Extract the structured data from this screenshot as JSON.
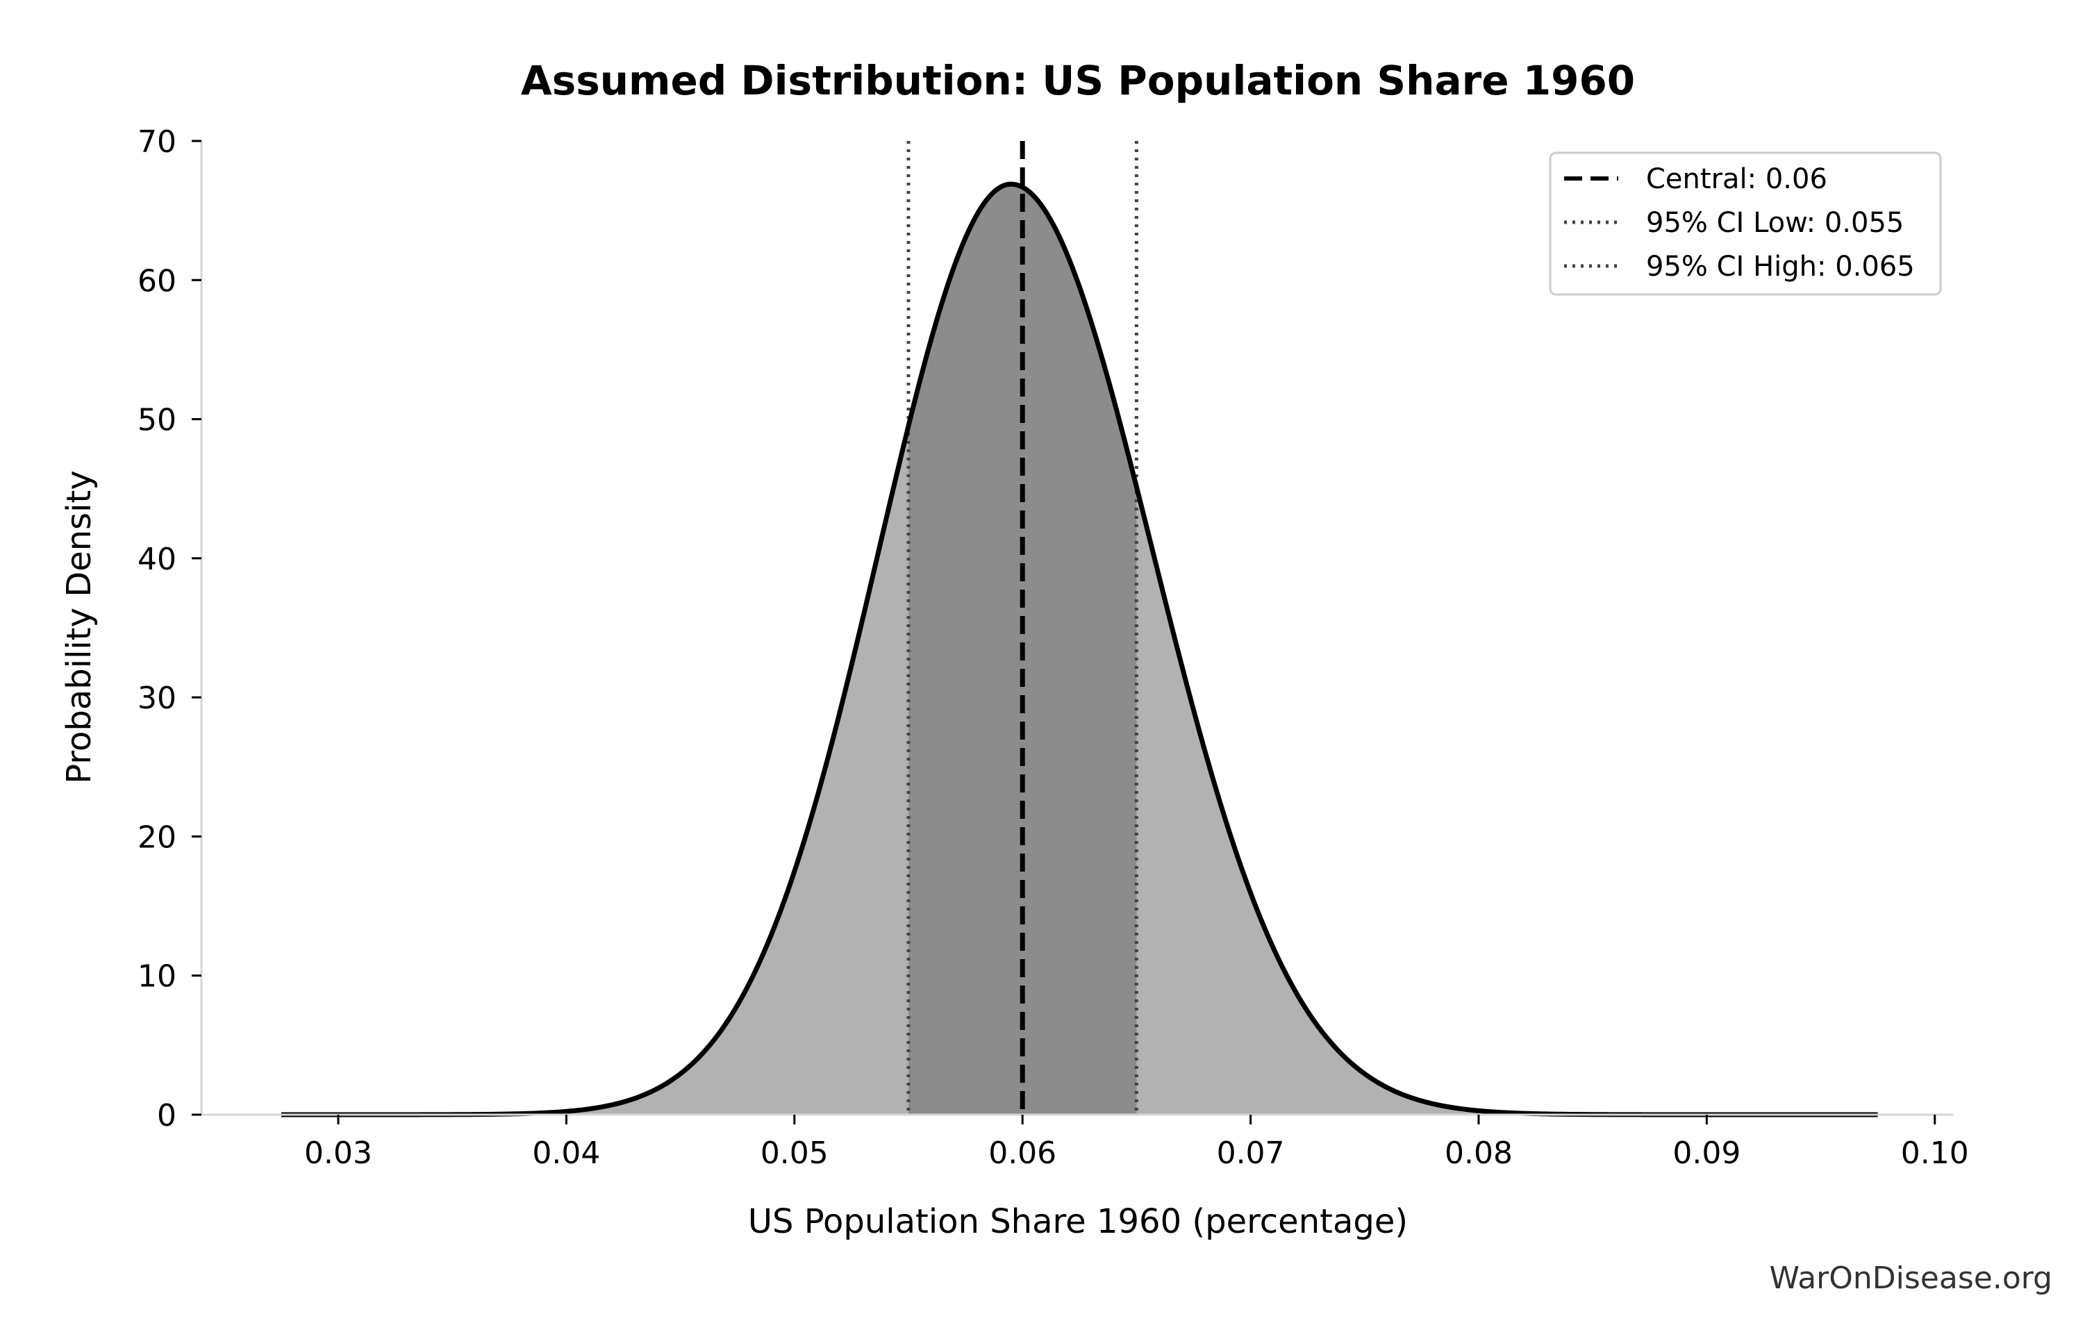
{
  "chart_data": {
    "type": "area",
    "title": "Assumed Distribution: US Population Share 1960",
    "xlabel": "US Population Share 1960 (percentage)",
    "ylabel": "Probability Density",
    "xlim": [
      0.024,
      0.1008
    ],
    "ylim": [
      0,
      70
    ],
    "x_ticks": [
      "0.03",
      "0.04",
      "0.05",
      "0.06",
      "0.07",
      "0.08",
      "0.09",
      "0.10"
    ],
    "x_tick_values": [
      0.03,
      0.04,
      0.05,
      0.06,
      0.07,
      0.08,
      0.09,
      0.1
    ],
    "y_ticks": [
      "0",
      "10",
      "20",
      "30",
      "40",
      "50",
      "60",
      "70"
    ],
    "y_tick_values": [
      0,
      10,
      20,
      30,
      40,
      50,
      60,
      70
    ],
    "distribution": {
      "domain": [
        0.0275,
        0.0975
      ],
      "peak_x": 0.0595,
      "peak_density": 66.9,
      "sd_left": 0.0058,
      "sd_right": 0.0062
    },
    "central": 0.06,
    "ci_low": 0.055,
    "ci_high": 0.065,
    "grid": false,
    "legend_position": "top-right",
    "legend": [
      {
        "label": "Central: 0.06",
        "style": "dashed"
      },
      {
        "label": "95% CI Low: 0.055",
        "style": "dotted"
      },
      {
        "label": "95% CI High: 0.065",
        "style": "dotted"
      }
    ],
    "colors": {
      "outer_fill": "#b2b2b2",
      "ci_fill": "#8c8c8c",
      "curve": "#000000",
      "ci_line": "#444444",
      "central_line": "#000000"
    }
  },
  "watermark": "WarOnDisease.org"
}
